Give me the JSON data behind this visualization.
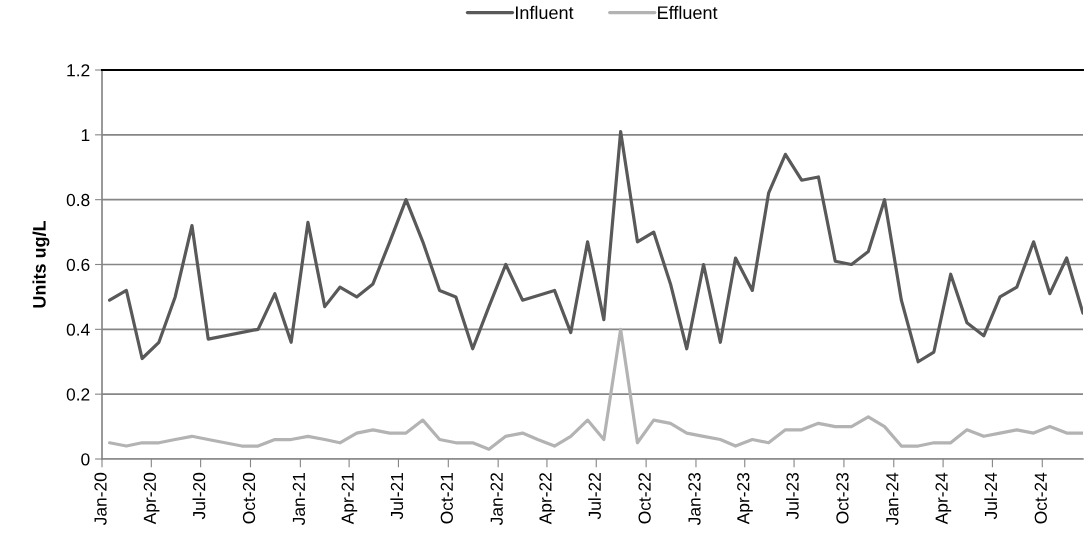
{
  "chart_data": {
    "type": "line",
    "ylabel": "Units ug/L",
    "x": [
      "2020-01-15",
      "2020-02-15",
      "2020-03-15",
      "2020-04-15",
      "2020-05-15",
      "2020-06-15",
      "2020-07-15",
      "2020-08-15",
      "2020-09-15",
      "2020-10-15",
      "2020-11-15",
      "2020-12-15",
      "2021-01-15",
      "2021-02-15",
      "2021-03-15",
      "2021-04-15",
      "2021-05-15",
      "2021-06-15",
      "2021-07-15",
      "2021-08-15",
      "2021-09-15",
      "2021-10-15",
      "2021-11-15",
      "2021-12-15",
      "2022-01-15",
      "2022-02-15",
      "2022-03-15",
      "2022-04-15",
      "2022-05-15",
      "2022-06-15",
      "2022-07-15",
      "2022-08-15",
      "2022-09-15",
      "2022-10-15",
      "2022-11-15",
      "2022-12-15",
      "2023-01-15",
      "2023-02-15",
      "2023-03-15",
      "2023-04-15",
      "2023-05-15",
      "2023-06-15",
      "2023-07-15",
      "2023-08-15",
      "2023-09-15",
      "2023-10-15",
      "2023-11-15",
      "2023-12-15",
      "2024-01-15",
      "2024-02-15",
      "2024-03-15",
      "2024-04-15",
      "2024-05-15",
      "2024-06-15",
      "2024-07-15",
      "2024-08-15",
      "2024-09-15",
      "2024-10-15",
      "2024-11-15",
      "2024-12-15"
    ],
    "series": [
      {
        "name": "Influent",
        "color": "#595959",
        "x": [
          "2020-01-15",
          "2020-02-15",
          "2020-03-15",
          "2020-04-15",
          "2020-05-15",
          "2020-06-15",
          "2020-07-15",
          "2020-10-15",
          "2020-11-15",
          "2020-12-15",
          "2021-01-15",
          "2021-02-15",
          "2021-03-15",
          "2021-04-15",
          "2021-05-15",
          "2021-06-15",
          "2021-07-15",
          "2021-08-15",
          "2021-09-15",
          "2021-10-15",
          "2021-11-15",
          "2021-12-15",
          "2022-01-15",
          "2022-02-15",
          "2022-04-15",
          "2022-05-15",
          "2022-06-15",
          "2022-07-15",
          "2022-08-15",
          "2022-09-15",
          "2022-10-15",
          "2022-11-15",
          "2022-12-15",
          "2023-01-15",
          "2023-02-15",
          "2023-03-15",
          "2023-04-15",
          "2023-05-15",
          "2023-06-15",
          "2023-07-15",
          "2023-08-15",
          "2023-09-15",
          "2023-10-15",
          "2023-11-15",
          "2023-12-15",
          "2024-01-15",
          "2024-02-15",
          "2024-03-15",
          "2024-04-15",
          "2024-05-15",
          "2024-06-15",
          "2024-07-15",
          "2024-08-15",
          "2024-09-15",
          "2024-10-15",
          "2024-11-15",
          "2024-12-15"
        ],
        "values": [
          0.49,
          0.52,
          0.31,
          0.36,
          0.5,
          0.72,
          0.37,
          0.4,
          0.51,
          0.36,
          0.73,
          0.47,
          0.53,
          0.5,
          0.54,
          0.67,
          0.8,
          0.67,
          0.52,
          0.5,
          0.34,
          0.47,
          0.6,
          0.49,
          0.52,
          0.39,
          0.67,
          0.43,
          1.01,
          0.67,
          0.7,
          0.54,
          0.34,
          0.6,
          0.36,
          0.62,
          0.52,
          0.82,
          0.94,
          0.86,
          0.87,
          0.61,
          0.6,
          0.64,
          0.8,
          0.49,
          0.3,
          0.33,
          0.57,
          0.42,
          0.38,
          0.5,
          0.53,
          0.67,
          0.51,
          0.62,
          0.45
        ]
      },
      {
        "name": "Effluent",
        "color": "#b3b3b3",
        "values": [
          0.05,
          0.04,
          0.05,
          0.05,
          0.06,
          0.07,
          0.06,
          0.05,
          0.04,
          0.04,
          0.06,
          0.06,
          0.07,
          0.06,
          0.05,
          0.08,
          0.09,
          0.08,
          0.08,
          0.12,
          0.06,
          0.05,
          0.05,
          0.03,
          0.07,
          0.08,
          0.06,
          0.04,
          0.07,
          0.12,
          0.06,
          0.4,
          0.05,
          0.12,
          0.11,
          0.08,
          0.07,
          0.06,
          0.04,
          0.06,
          0.05,
          0.09,
          0.09,
          0.11,
          0.1,
          0.1,
          0.13,
          0.1,
          0.04,
          0.04,
          0.05,
          0.05,
          0.09,
          0.07,
          0.08,
          0.09,
          0.08,
          0.1,
          0.08,
          0.08
        ]
      }
    ],
    "xlim": [
      "2020-01-01",
      "2024-12-15"
    ],
    "xticks": [
      {
        "value": "2020-01-01",
        "label": "Jan-20"
      },
      {
        "value": "2020-04-01",
        "label": "Apr-20"
      },
      {
        "value": "2020-07-01",
        "label": "Jul-20"
      },
      {
        "value": "2020-10-01",
        "label": "Oct-20"
      },
      {
        "value": "2021-01-01",
        "label": "Jan-21"
      },
      {
        "value": "2021-04-01",
        "label": "Apr-21"
      },
      {
        "value": "2021-07-01",
        "label": "Jul-21"
      },
      {
        "value": "2021-10-01",
        "label": "Oct-21"
      },
      {
        "value": "2022-01-01",
        "label": "Jan-22"
      },
      {
        "value": "2022-04-01",
        "label": "Apr-22"
      },
      {
        "value": "2022-07-01",
        "label": "Jul-22"
      },
      {
        "value": "2022-10-01",
        "label": "Oct-22"
      },
      {
        "value": "2023-01-01",
        "label": "Jan-23"
      },
      {
        "value": "2023-04-01",
        "label": "Apr-23"
      },
      {
        "value": "2023-07-01",
        "label": "Jul-23"
      },
      {
        "value": "2023-10-01",
        "label": "Oct-23"
      },
      {
        "value": "2024-01-01",
        "label": "Jan-24"
      },
      {
        "value": "2024-04-01",
        "label": "Apr-24"
      },
      {
        "value": "2024-07-01",
        "label": "Jul-24"
      },
      {
        "value": "2024-10-01",
        "label": "Oct-24"
      }
    ],
    "ylim": [
      0,
      1.2
    ],
    "yticks": [
      0,
      0.2,
      0.4,
      0.6,
      0.8,
      1,
      1.2
    ],
    "grid": "y",
    "legend": "top",
    "marker": "none",
    "line_style": "solid"
  }
}
